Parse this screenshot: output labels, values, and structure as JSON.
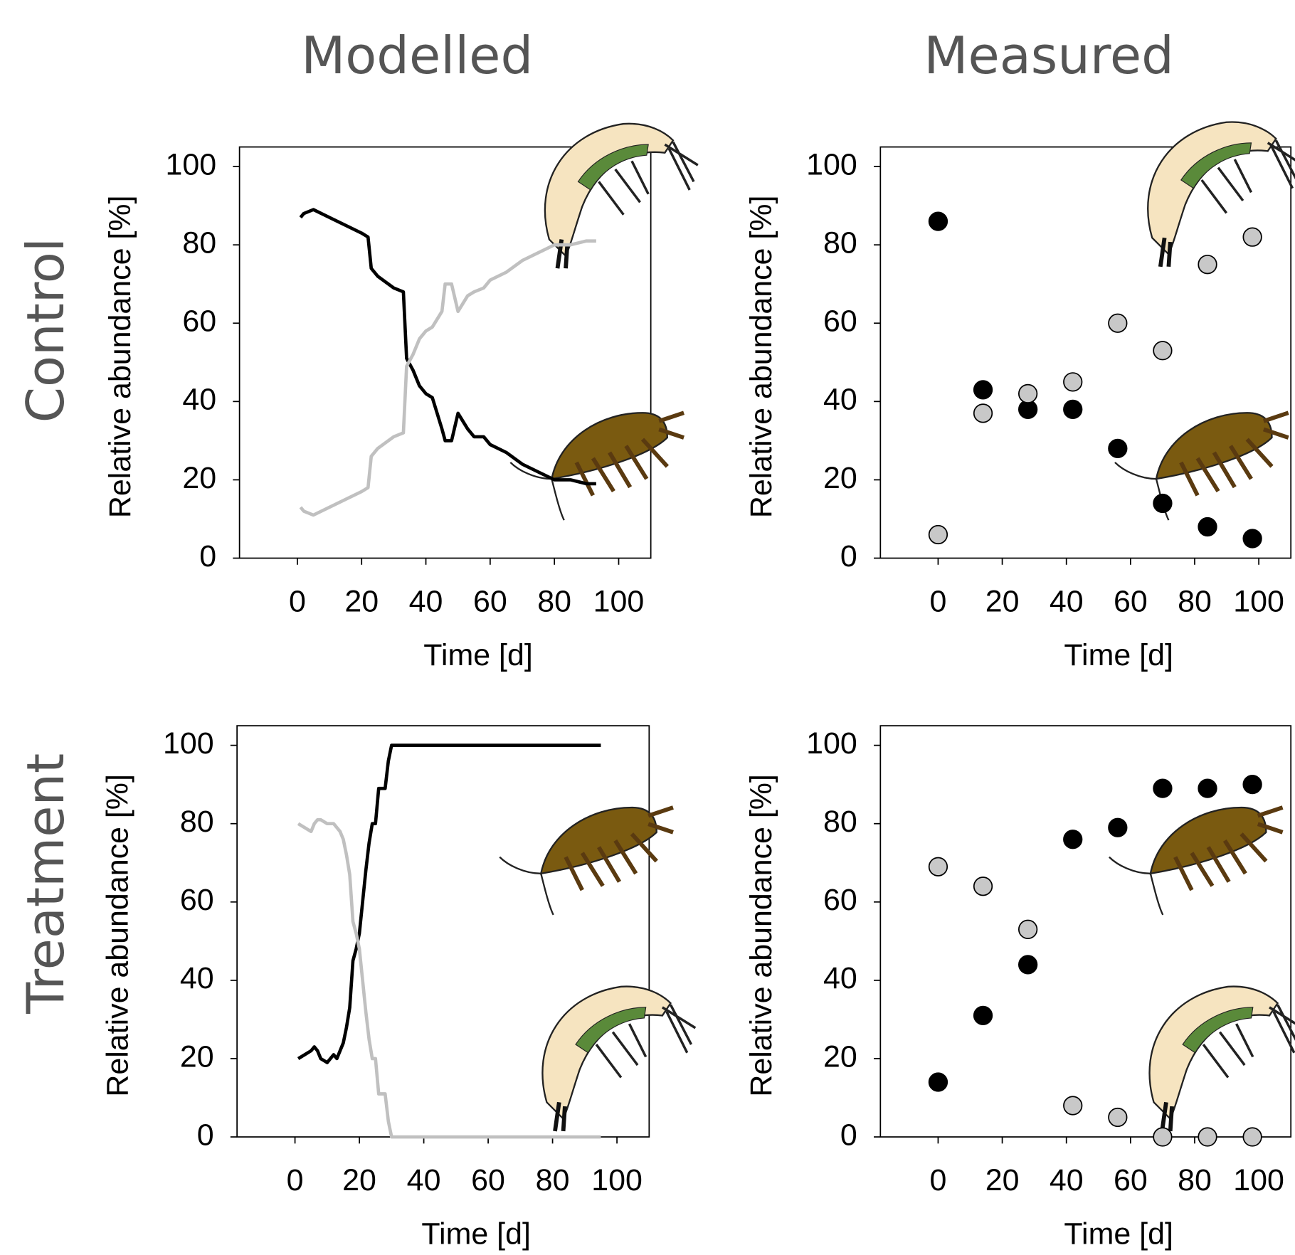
{
  "panel_labels": {
    "columns": [
      "Modelled",
      "Measured"
    ],
    "rows": [
      "Control",
      "Treatment"
    ]
  },
  "chart_data": [
    {
      "type": "line",
      "xlabel": "Time [d]",
      "ylabel": "Relative abundance [%]",
      "xlim": [
        -18,
        110
      ],
      "ylim": [
        0,
        105
      ],
      "xticks": [
        0,
        20,
        40,
        60,
        80,
        100
      ],
      "yticks": [
        0,
        20,
        40,
        60,
        80,
        100
      ],
      "x": [
        1,
        2,
        5,
        10,
        15,
        20,
        22,
        23,
        25,
        30,
        33,
        34,
        36,
        38,
        40,
        42,
        45,
        46,
        48,
        50,
        53,
        55,
        58,
        60,
        65,
        70,
        75,
        80,
        85,
        90,
        93
      ],
      "series": [
        {
          "color": "#000000",
          "values": [
            87,
            88,
            89,
            87,
            85,
            83,
            82,
            74,
            72,
            69,
            68,
            51,
            48,
            44,
            42,
            41,
            33,
            30,
            30,
            37,
            33,
            31,
            31,
            29,
            27,
            24,
            22,
            20,
            20,
            19,
            19
          ]
        },
        {
          "color": "#c0c0c0",
          "values": [
            13,
            12,
            11,
            13,
            15,
            17,
            18,
            26,
            28,
            31,
            32,
            49,
            52,
            56,
            58,
            59,
            63,
            70,
            70,
            63,
            67,
            68,
            69,
            71,
            73,
            76,
            78,
            80,
            80,
            81,
            81
          ]
        }
      ]
    },
    {
      "type": "scatter",
      "xlabel": "Time [d]",
      "ylabel": "Relative abundance [%]",
      "xlim": [
        -18,
        110
      ],
      "ylim": [
        0,
        105
      ],
      "xticks": [
        0,
        20,
        40,
        60,
        80,
        100
      ],
      "yticks": [
        0,
        20,
        40,
        60,
        80,
        100
      ],
      "x": [
        0,
        14,
        28,
        42,
        56,
        70,
        84,
        98
      ],
      "series": [
        {
          "color": "#000000",
          "values": [
            86,
            43,
            38,
            38,
            28,
            14,
            8,
            5
          ]
        },
        {
          "color": "#c8c8c8",
          "values": [
            6,
            37,
            42,
            45,
            60,
            53,
            75,
            82
          ]
        }
      ]
    },
    {
      "type": "line",
      "xlabel": "Time [d]",
      "ylabel": "Relative abundance [%]",
      "xlim": [
        -18,
        110
      ],
      "ylim": [
        0,
        105
      ],
      "xticks": [
        0,
        20,
        40,
        60,
        80,
        100
      ],
      "yticks": [
        0,
        20,
        40,
        60,
        80,
        100
      ],
      "x": [
        1,
        3,
        5,
        6,
        7,
        8,
        10,
        12,
        13,
        14,
        15,
        16,
        17,
        18,
        19,
        20,
        21,
        22,
        23,
        24,
        25,
        26,
        28,
        29,
        30,
        40,
        60,
        80,
        95
      ],
      "series": [
        {
          "color": "#000000",
          "values": [
            20,
            21,
            22,
            23,
            22,
            20,
            19,
            21,
            20,
            22,
            24,
            28,
            33,
            45,
            48,
            52,
            60,
            68,
            75,
            80,
            80,
            89,
            89,
            96,
            100,
            100,
            100,
            100,
            100
          ]
        },
        {
          "color": "#c0c0c0",
          "values": [
            80,
            79,
            78,
            80,
            81,
            81,
            80,
            80,
            79,
            78,
            76,
            72,
            67,
            55,
            52,
            48,
            40,
            32,
            25,
            20,
            20,
            11,
            11,
            4,
            0,
            0,
            0,
            0,
            0
          ]
        }
      ]
    },
    {
      "type": "scatter",
      "xlabel": "Time [d]",
      "ylabel": "Relative abundance [%]",
      "xlim": [
        -18,
        110
      ],
      "ylim": [
        0,
        105
      ],
      "xticks": [
        0,
        20,
        40,
        60,
        80,
        100
      ],
      "yticks": [
        0,
        20,
        40,
        60,
        80,
        100
      ],
      "x": [
        0,
        14,
        28,
        42,
        56,
        70,
        84,
        98
      ],
      "series": [
        {
          "color": "#000000",
          "values": [
            14,
            31,
            44,
            76,
            79,
            89,
            89,
            90
          ]
        },
        {
          "color": "#c8c8c8",
          "values": [
            69,
            64,
            53,
            8,
            5,
            0,
            0,
            0
          ]
        }
      ]
    }
  ]
}
